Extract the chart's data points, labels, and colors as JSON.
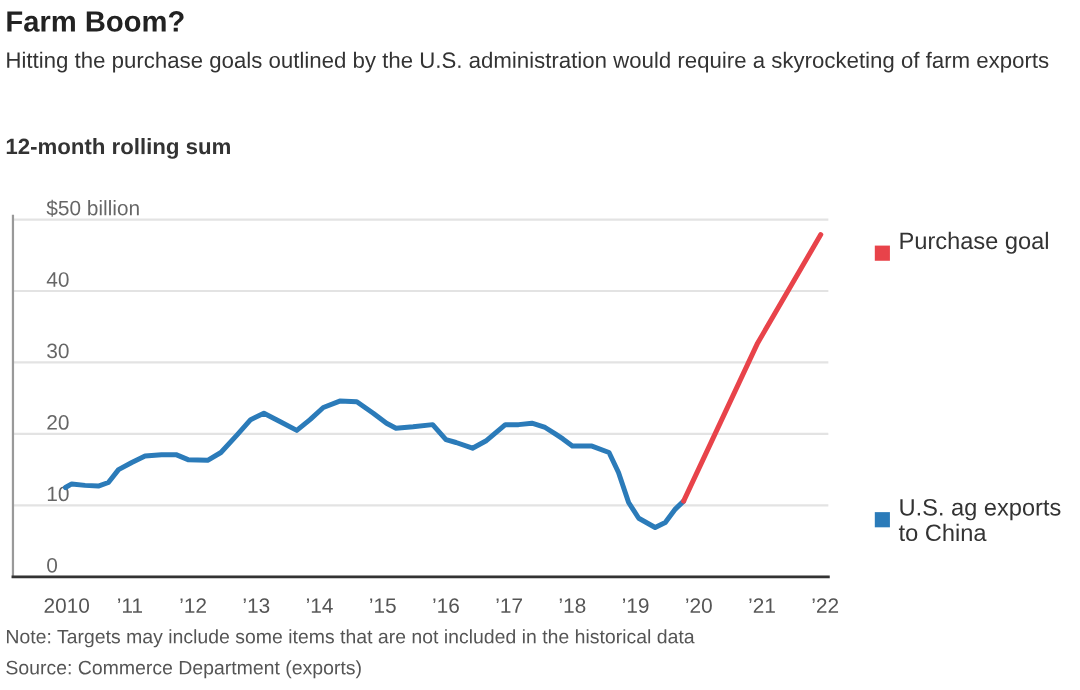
{
  "chart_data": {
    "type": "line",
    "title": "Farm Boom?",
    "subtitle": "Hitting the purchase goals outlined by the U.S. administration would require a skyrocketing of farm exports",
    "ylabel": "12-month rolling sum",
    "series": [
      {
        "name": "U.S. ag exports to China",
        "color": "#2b7bb9",
        "x": [
          2009.98,
          2010.08,
          2010.29,
          2010.5,
          2010.66,
          2010.82,
          2011.03,
          2011.24,
          2011.5,
          2011.73,
          2011.92,
          2012.23,
          2012.44,
          2012.7,
          2012.91,
          2013.12,
          2013.38,
          2013.64,
          2013.85,
          2014.06,
          2014.32,
          2014.59,
          2014.85,
          2015.06,
          2015.21,
          2015.48,
          2015.79,
          2016.0,
          2016.16,
          2016.42,
          2016.63,
          2016.94,
          2017.15,
          2017.36,
          2017.57,
          2017.73,
          2017.85,
          2018.0,
          2018.31,
          2018.58,
          2018.73,
          2018.89,
          2019.05,
          2019.31,
          2019.47,
          2019.62,
          2019.76
        ],
        "values": [
          12.5,
          13.0,
          12.8,
          12.7,
          13.2,
          15.0,
          16.0,
          16.9,
          17.1,
          17.1,
          16.4,
          16.3,
          17.4,
          19.9,
          22.0,
          22.9,
          21.7,
          20.5,
          22.0,
          23.7,
          24.6,
          24.5,
          22.9,
          21.5,
          20.8,
          21.0,
          21.3,
          19.2,
          18.8,
          18.0,
          19.0,
          21.3,
          21.3,
          21.5,
          20.9,
          20.0,
          19.3,
          18.3,
          18.3,
          17.4,
          14.6,
          10.4,
          8.2,
          6.9,
          7.6,
          9.4,
          10.6
        ]
      },
      {
        "name": "Purchase goal",
        "color": "#e8434a",
        "x": [
          2019.76,
          2020.93,
          2021.93
        ],
        "values": [
          10.6,
          32.7,
          47.9
        ]
      }
    ],
    "xlim": [
      2009.15,
      2022.05
    ],
    "xticks": [
      {
        "value": 2010,
        "label": "2010"
      },
      {
        "value": 2011,
        "label": "’11"
      },
      {
        "value": 2012,
        "label": "’12"
      },
      {
        "value": 2013,
        "label": "’13"
      },
      {
        "value": 2014,
        "label": "’14"
      },
      {
        "value": 2015,
        "label": "’15"
      },
      {
        "value": 2016,
        "label": "’16"
      },
      {
        "value": 2017,
        "label": "’17"
      },
      {
        "value": 2018,
        "label": "’18"
      },
      {
        "value": 2019,
        "label": "’19"
      },
      {
        "value": 2020,
        "label": "’20"
      },
      {
        "value": 2021,
        "label": "’21"
      },
      {
        "value": 2022,
        "label": "’22"
      }
    ],
    "ylim": [
      0,
      50.5
    ],
    "yticks": [
      0,
      10,
      20,
      30,
      40,
      {
        "value": 50,
        "label": "$50 billion"
      }
    ],
    "grid": "y",
    "legend": "right",
    "marker": "none",
    "line_style": "solid",
    "annotations": [
      "Note: Targets may include some items that are not included in the historical data",
      "Source: Commerce Department (exports)"
    ]
  }
}
